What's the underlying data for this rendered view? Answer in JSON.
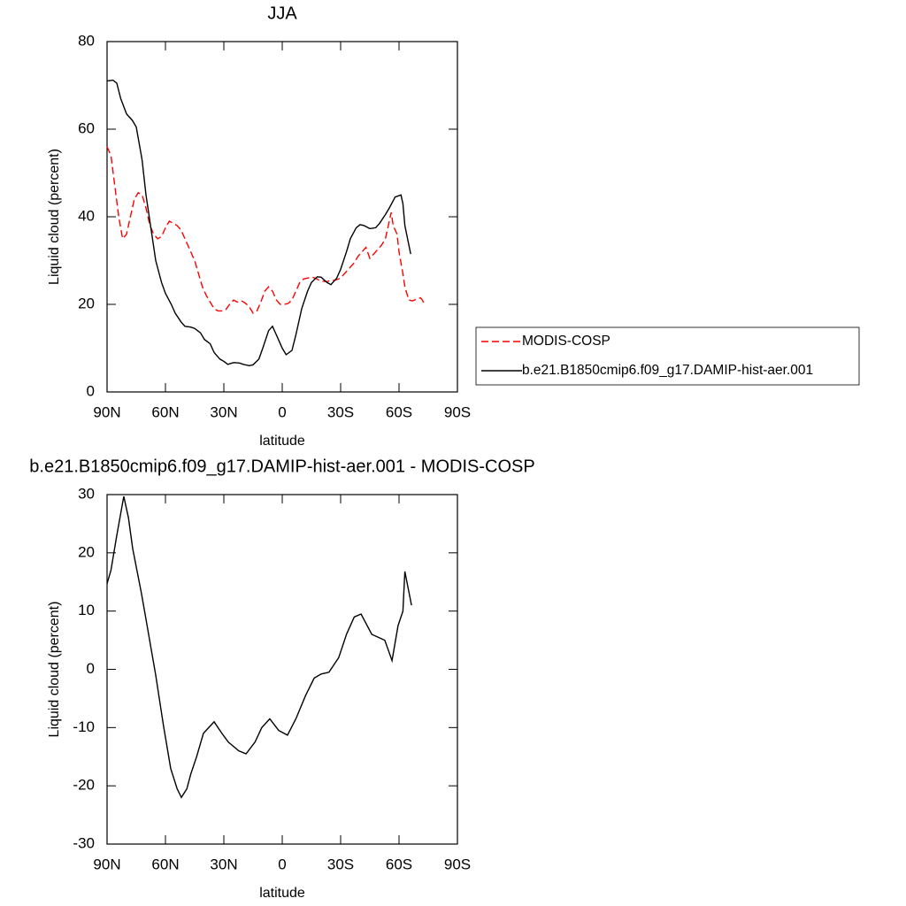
{
  "chart_data": [
    {
      "type": "line",
      "title": "JJA",
      "xlabel": "latitude",
      "ylabel": "Liquid cloud (percent)",
      "xlim": [
        90,
        -90
      ],
      "ylim": [
        0,
        80
      ],
      "xticks": [
        {
          "value": 90,
          "label": "90N"
        },
        {
          "value": 60,
          "label": "60N"
        },
        {
          "value": 30,
          "label": "30N"
        },
        0,
        {
          "value": -30,
          "label": "30S"
        },
        {
          "value": -60,
          "label": "60S"
        },
        {
          "value": -90,
          "label": "90S"
        }
      ],
      "yticks": [
        0,
        20,
        40,
        60,
        80
      ],
      "legend": "right",
      "series": [
        {
          "name": "MODIS-COSP",
          "color": "#ff0000",
          "line_style": "dashed",
          "x": [
            90,
            88,
            86,
            84,
            82,
            80,
            78,
            76,
            74,
            72,
            70,
            68,
            66,
            64,
            62,
            60,
            58,
            56,
            54,
            52,
            50,
            48,
            45,
            43,
            41,
            39,
            37,
            35,
            33,
            31,
            29,
            27,
            25,
            23,
            21,
            19,
            17,
            15,
            13,
            11,
            9,
            7,
            5,
            3,
            1,
            -1,
            -3,
            -5,
            -7,
            -9,
            -11,
            -13,
            -15,
            -17,
            -19,
            -21,
            -23,
            -25,
            -27,
            -29,
            -31,
            -33,
            -35,
            -37,
            -39,
            -41,
            -43,
            -45,
            -47,
            -49,
            -51,
            -53,
            -55,
            -56,
            -57,
            -58,
            -59,
            -60,
            -62,
            -63,
            -65,
            -67,
            -69,
            -71,
            -72,
            -73
          ],
          "values": [
            56,
            54,
            47,
            40,
            35,
            36,
            40,
            44,
            45.5,
            45,
            42,
            38,
            36,
            35,
            35.5,
            37.5,
            39,
            38.5,
            38,
            37,
            35,
            33,
            30,
            27,
            24,
            22,
            20.5,
            19,
            18.5,
            18.5,
            18.8,
            20,
            21,
            20.5,
            20.8,
            20.3,
            19.5,
            18,
            18.5,
            20.5,
            23,
            24,
            23,
            21,
            20,
            20,
            20.2,
            21,
            23,
            25,
            25.8,
            26,
            26.2,
            26,
            25.5,
            25.3,
            25.2,
            25.5,
            25.5,
            25.8,
            26.5,
            27.5,
            28.5,
            29.5,
            31,
            32,
            33,
            30.5,
            31.5,
            32.5,
            33.5,
            35,
            39,
            41,
            38,
            37,
            36,
            32,
            27,
            24,
            21,
            20.8,
            21.2,
            21.5,
            21,
            20
          ]
        },
        {
          "name": "b.e21.B1850cmip6.f09_g17.DAMIP-hist-aer.001",
          "color": "#000000",
          "line_style": "solid",
          "x": [
            90,
            87,
            85,
            83,
            80,
            77,
            75,
            72,
            70,
            67,
            65,
            62,
            60,
            57,
            55,
            52,
            50,
            47,
            45,
            42,
            40,
            37,
            35,
            32,
            30,
            28,
            25,
            22,
            20,
            17,
            15,
            12,
            10,
            7,
            5,
            3,
            0,
            -2,
            -5,
            -7,
            -10,
            -13,
            -15,
            -18,
            -20,
            -23,
            -25,
            -28,
            -30,
            -33,
            -35,
            -38,
            -40,
            -42,
            -45,
            -48,
            -50,
            -53,
            -55,
            -58,
            -61,
            -62,
            -63,
            -66
          ],
          "values": [
            71,
            71.2,
            70.5,
            67,
            63.5,
            62,
            60.5,
            53,
            45,
            36,
            30,
            25,
            22.5,
            20,
            18,
            16,
            15,
            14.8,
            14.5,
            13.5,
            12,
            11,
            9,
            7.5,
            7,
            6.3,
            6.7,
            6.6,
            6.3,
            6,
            6.2,
            7.5,
            10,
            14,
            15,
            13,
            10,
            8.5,
            9.5,
            13,
            19,
            23,
            25,
            26.3,
            26.2,
            25,
            24.5,
            26,
            28,
            32,
            35,
            37.5,
            38.2,
            38,
            37.3,
            37.5,
            38.5,
            40.5,
            42,
            44.5,
            45,
            43,
            38,
            31.5
          ]
        }
      ]
    },
    {
      "type": "line",
      "title": "b.e21.B1850cmip6.f09_g17.DAMIP-hist-aer.001 - MODIS-COSP",
      "xlabel": "latitude",
      "ylabel": "Liquid cloud (percent)",
      "xlim": [
        90,
        -90
      ],
      "ylim": [
        -30,
        30
      ],
      "xticks": [
        {
          "value": 90,
          "label": "90N"
        },
        {
          "value": 60,
          "label": "60N"
        },
        {
          "value": 30,
          "label": "30N"
        },
        0,
        {
          "value": -30,
          "label": "30S"
        },
        {
          "value": -60,
          "label": "60S"
        },
        {
          "value": -90,
          "label": "90S"
        }
      ],
      "yticks": [
        -30,
        -20,
        -10,
        0,
        10,
        20,
        30
      ],
      "series": [
        {
          "color": "#000000",
          "line_style": "solid",
          "x": [
            90,
            88,
            85,
            81.4,
            79,
            76.8,
            72.3,
            70,
            65,
            61,
            57.3,
            54,
            51.8,
            49,
            47,
            44,
            40.5,
            35,
            31,
            27.7,
            22.3,
            18.6,
            14,
            10.5,
            6.4,
            1.8,
            -2.7,
            -7,
            -12,
            -16.4,
            -20,
            -24,
            -29,
            -33,
            -37,
            -40.5,
            -46,
            -52.7,
            -56.4,
            -59.5,
            -62,
            -63,
            -66.4
          ],
          "values": [
            14.7,
            17,
            23,
            29.7,
            26,
            20.7,
            13,
            8.6,
            -1,
            -9.7,
            -17,
            -20.5,
            -22,
            -20.5,
            -18,
            -15,
            -11,
            -9,
            -11,
            -12.5,
            -14,
            -14.5,
            -12.5,
            -10,
            -8.5,
            -10.5,
            -11.3,
            -8.5,
            -4.5,
            -1.5,
            -0.8,
            -0.5,
            2,
            6,
            9,
            9.5,
            6,
            5,
            1.5,
            7.5,
            10,
            16.8,
            11
          ]
        }
      ]
    }
  ]
}
